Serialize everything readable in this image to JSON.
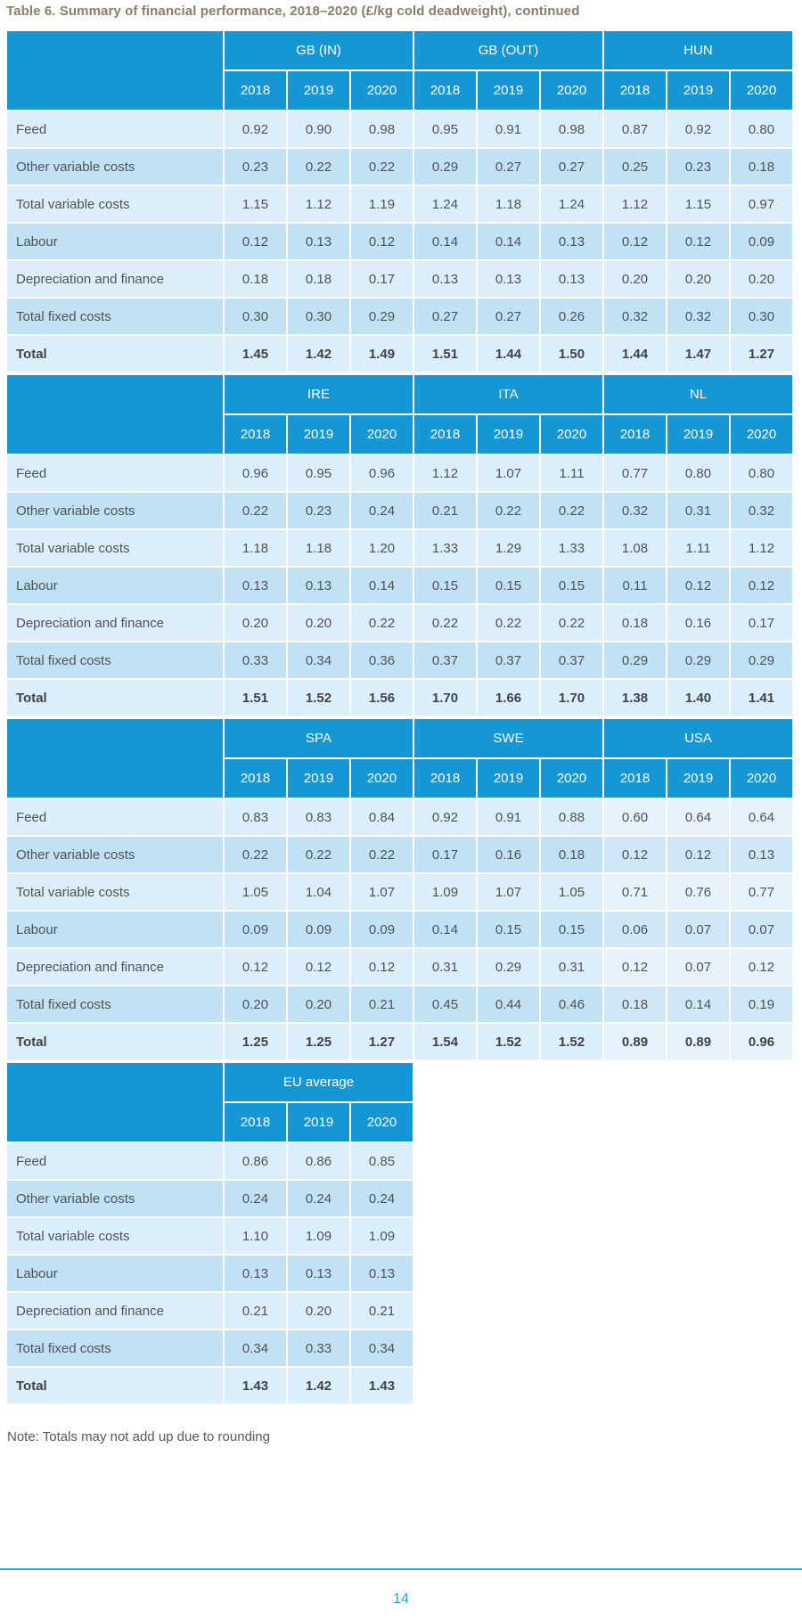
{
  "page": {
    "title": "Table 6. Summary of financial performance, 2018–2020 (£/kg cold deadweight), continued",
    "note": "Note: Totals may not add up due to rounding",
    "page_number": "14"
  },
  "colors": {
    "header_blue": "#1697d5",
    "row_light": "#dceefa",
    "row_dark": "#c1e1f5",
    "row_light_muted": "#e7f3fc",
    "row_dark_muted": "#d0e7f7",
    "title_brown": "#8e7c6b",
    "body_text": "#4f5356",
    "body_text_bold": "#3f4346",
    "note_gray": "#57595b",
    "accent_blue": "#2aa9e1"
  },
  "table": {
    "years": [
      "2018",
      "2019",
      "2020"
    ],
    "row_labels": [
      "Feed",
      "Other variable costs",
      "Total variable costs",
      "Labour",
      "Depreciation and finance",
      "Total fixed costs",
      "Total"
    ],
    "blocks": [
      {
        "groups": [
          {
            "name": "GB (IN)",
            "rows": [
              [
                "0.92",
                "0.90",
                "0.98"
              ],
              [
                "0.23",
                "0.22",
                "0.22"
              ],
              [
                "1.15",
                "1.12",
                "1.19"
              ],
              [
                "0.12",
                "0.13",
                "0.12"
              ],
              [
                "0.18",
                "0.18",
                "0.17"
              ],
              [
                "0.30",
                "0.30",
                "0.29"
              ],
              [
                "1.45",
                "1.42",
                "1.49"
              ]
            ]
          },
          {
            "name": "GB (OUT)",
            "rows": [
              [
                "0.95",
                "0.91",
                "0.98"
              ],
              [
                "0.29",
                "0.27",
                "0.27"
              ],
              [
                "1.24",
                "1.18",
                "1.24"
              ],
              [
                "0.14",
                "0.14",
                "0.13"
              ],
              [
                "0.13",
                "0.13",
                "0.13"
              ],
              [
                "0.27",
                "0.27",
                "0.26"
              ],
              [
                "1.51",
                "1.44",
                "1.50"
              ]
            ]
          },
          {
            "name": "HUN",
            "rows": [
              [
                "0.87",
                "0.92",
                "0.80"
              ],
              [
                "0.25",
                "0.23",
                "0.18"
              ],
              [
                "1.12",
                "1.15",
                "0.97"
              ],
              [
                "0.12",
                "0.12",
                "0.09"
              ],
              [
                "0.20",
                "0.20",
                "0.20"
              ],
              [
                "0.32",
                "0.32",
                "0.30"
              ],
              [
                "1.44",
                "1.47",
                "1.27"
              ]
            ]
          }
        ]
      },
      {
        "groups": [
          {
            "name": "IRE",
            "rows": [
              [
                "0.96",
                "0.95",
                "0.96"
              ],
              [
                "0.22",
                "0.23",
                "0.24"
              ],
              [
                "1.18",
                "1.18",
                "1.20"
              ],
              [
                "0.13",
                "0.13",
                "0.14"
              ],
              [
                "0.20",
                "0.20",
                "0.22"
              ],
              [
                "0.33",
                "0.34",
                "0.36"
              ],
              [
                "1.51",
                "1.52",
                "1.56"
              ]
            ]
          },
          {
            "name": "ITA",
            "rows": [
              [
                "1.12",
                "1.07",
                "1.11"
              ],
              [
                "0.21",
                "0.22",
                "0.22"
              ],
              [
                "1.33",
                "1.29",
                "1.33"
              ],
              [
                "0.15",
                "0.15",
                "0.15"
              ],
              [
                "0.22",
                "0.22",
                "0.22"
              ],
              [
                "0.37",
                "0.37",
                "0.37"
              ],
              [
                "1.70",
                "1.66",
                "1.70"
              ]
            ]
          },
          {
            "name": "NL",
            "rows": [
              [
                "0.77",
                "0.80",
                "0.80"
              ],
              [
                "0.32",
                "0.31",
                "0.32"
              ],
              [
                "1.08",
                "1.11",
                "1.12"
              ],
              [
                "0.11",
                "0.12",
                "0.12"
              ],
              [
                "0.18",
                "0.16",
                "0.17"
              ],
              [
                "0.29",
                "0.29",
                "0.29"
              ],
              [
                "1.38",
                "1.40",
                "1.41"
              ]
            ]
          }
        ]
      },
      {
        "groups": [
          {
            "name": "SPA",
            "rows": [
              [
                "0.83",
                "0.83",
                "0.84"
              ],
              [
                "0.22",
                "0.22",
                "0.22"
              ],
              [
                "1.05",
                "1.04",
                "1.07"
              ],
              [
                "0.09",
                "0.09",
                "0.09"
              ],
              [
                "0.12",
                "0.12",
                "0.12"
              ],
              [
                "0.20",
                "0.20",
                "0.21"
              ],
              [
                "1.25",
                "1.25",
                "1.27"
              ]
            ]
          },
          {
            "name": "SWE",
            "rows": [
              [
                "0.92",
                "0.91",
                "0.88"
              ],
              [
                "0.17",
                "0.16",
                "0.18"
              ],
              [
                "1.09",
                "1.07",
                "1.05"
              ],
              [
                "0.14",
                "0.15",
                "0.15"
              ],
              [
                "0.31",
                "0.29",
                "0.31"
              ],
              [
                "0.45",
                "0.44",
                "0.46"
              ],
              [
                "1.54",
                "1.52",
                "1.52"
              ]
            ]
          },
          {
            "name": "USA",
            "muted": true,
            "rows": [
              [
                "0.60",
                "0.64",
                "0.64"
              ],
              [
                "0.12",
                "0.12",
                "0.13"
              ],
              [
                "0.71",
                "0.76",
                "0.77"
              ],
              [
                "0.06",
                "0.07",
                "0.07"
              ],
              [
                "0.12",
                "0.07",
                "0.12"
              ],
              [
                "0.18",
                "0.14",
                "0.19"
              ],
              [
                "0.89",
                "0.89",
                "0.96"
              ]
            ]
          }
        ]
      },
      {
        "groups": [
          {
            "name": "EU average",
            "rows": [
              [
                "0.86",
                "0.86",
                "0.85"
              ],
              [
                "0.24",
                "0.24",
                "0.24"
              ],
              [
                "1.10",
                "1.09",
                "1.09"
              ],
              [
                "0.13",
                "0.13",
                "0.13"
              ],
              [
                "0.21",
                "0.20",
                "0.21"
              ],
              [
                "0.34",
                "0.33",
                "0.34"
              ],
              [
                "1.43",
                "1.42",
                "1.43"
              ]
            ]
          }
        ]
      }
    ]
  }
}
